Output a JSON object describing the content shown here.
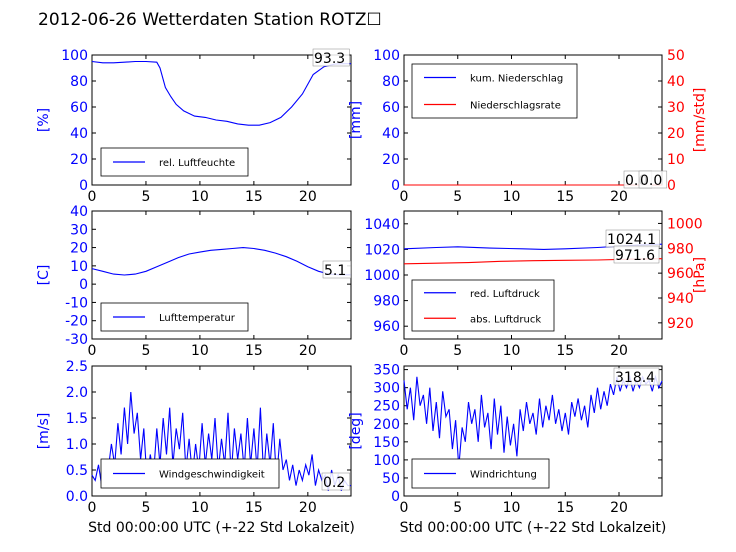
{
  "title": "2012-06-26 Wetterdaten Station ROTZ☐",
  "colors": {
    "blue": "#0000ff",
    "red": "#ff0000",
    "black": "#000000"
  },
  "chart_data": [
    {
      "id": "humidity",
      "type": "line",
      "xlim": [
        0,
        24
      ],
      "ylim": [
        0,
        100
      ],
      "xticks": [
        0,
        5,
        10,
        15,
        20
      ],
      "yticks": [
        0,
        20,
        40,
        60,
        80,
        100
      ],
      "ylabel": "[%]",
      "legend": {
        "position": "lower-left",
        "entries": [
          "rel. Luftfeuchte"
        ]
      },
      "annotations": [
        "93.3"
      ],
      "series": [
        {
          "name": "rel. Luftfeuchte",
          "color": "#0000ff",
          "x": [
            0,
            1,
            2,
            3,
            4,
            5,
            6,
            6.3,
            6.8,
            7.3,
            7.8,
            8.5,
            9.5,
            10.5,
            11.5,
            12.5,
            13.5,
            14.5,
            15.5,
            16.5,
            17.5,
            18.5,
            19.5,
            20.5,
            21.5,
            22.5,
            23.5,
            24
          ],
          "y": [
            95,
            94,
            94,
            94.5,
            95,
            95,
            94.5,
            90,
            75,
            68,
            62,
            57,
            53,
            52,
            50,
            49,
            47,
            46,
            46,
            48,
            52,
            60,
            70,
            85,
            91,
            93,
            93.3,
            93.3
          ]
        }
      ]
    },
    {
      "id": "precipitation",
      "type": "line",
      "xlim": [
        0,
        24
      ],
      "ylim": [
        0,
        100
      ],
      "y2lim": [
        0,
        50
      ],
      "xticks": [
        0,
        5,
        10,
        15,
        20
      ],
      "yticks": [
        0,
        20,
        40,
        60,
        80,
        100
      ],
      "y2ticks": [
        0,
        10,
        20,
        30,
        40,
        50
      ],
      "ylabel": "[mm]",
      "y2label": "[mm/std]",
      "legend": {
        "position": "upper-left",
        "entries": [
          "kum. Niederschlag",
          "Niederschlagsrate"
        ]
      },
      "annotations": [
        "0.0",
        "0.0"
      ],
      "series": [
        {
          "name": "kum. Niederschlag",
          "color": "#0000ff",
          "axis": "left",
          "x": [
            0,
            24
          ],
          "y": [
            0,
            0
          ]
        },
        {
          "name": "Niederschlagsrate",
          "color": "#ff0000",
          "axis": "right",
          "x": [
            0,
            24
          ],
          "y": [
            0,
            0
          ]
        }
      ]
    },
    {
      "id": "temperature",
      "type": "line",
      "xlim": [
        0,
        24
      ],
      "ylim": [
        -30,
        40
      ],
      "xticks": [
        0,
        5,
        10,
        15,
        20
      ],
      "yticks": [
        -30,
        -20,
        -10,
        0,
        10,
        20,
        30,
        40
      ],
      "ylabel": "[C]",
      "legend": {
        "position": "lower-left",
        "entries": [
          "Lufttemperatur"
        ]
      },
      "annotations": [
        "5.1"
      ],
      "series": [
        {
          "name": "Lufttemperatur",
          "color": "#0000ff",
          "x": [
            0,
            1,
            2,
            3,
            4,
            5,
            6,
            7,
            8,
            9,
            10,
            11,
            12,
            13,
            14,
            15,
            16,
            17,
            18,
            19,
            20,
            21,
            22,
            23,
            24
          ],
          "y": [
            8.5,
            7,
            5.5,
            5,
            5.5,
            7,
            9.5,
            12,
            14.5,
            16.5,
            17.5,
            18.5,
            19,
            19.5,
            20,
            19.5,
            18.5,
            17,
            15,
            12.5,
            9.5,
            7,
            5.5,
            5.1,
            5.1
          ]
        }
      ]
    },
    {
      "id": "pressure",
      "type": "line",
      "xlim": [
        0,
        24
      ],
      "ylim": [
        950,
        1050
      ],
      "y2lim": [
        907,
        1010
      ],
      "xticks": [
        0,
        5,
        10,
        15,
        20
      ],
      "yticks": [
        960,
        980,
        1000,
        1020,
        1040
      ],
      "y2ticks": [
        920,
        940,
        960,
        980,
        1000
      ],
      "ylabel": "",
      "y2label": "[hPa]",
      "legend": {
        "position": "lower-left",
        "entries": [
          "red. Luftdruck",
          "abs. Luftdruck"
        ]
      },
      "annotations": [
        "1024.1",
        "971.6"
      ],
      "series": [
        {
          "name": "red. Luftdruck",
          "color": "#0000ff",
          "axis": "left",
          "x": [
            0,
            3,
            5,
            8,
            11,
            13,
            15,
            18,
            20,
            22,
            24
          ],
          "y": [
            1020.5,
            1021.5,
            1022,
            1021,
            1020.5,
            1020,
            1020.5,
            1021.5,
            1022.5,
            1023.5,
            1024.1
          ]
        },
        {
          "name": "abs. Luftdruck",
          "color": "#ff0000",
          "axis": "right",
          "x": [
            0,
            3,
            6,
            9,
            12,
            15,
            18,
            21,
            24
          ],
          "y": [
            967.5,
            968,
            968.5,
            969.5,
            970,
            970.3,
            970.6,
            971.2,
            971.6
          ]
        }
      ]
    },
    {
      "id": "wind-speed",
      "type": "line",
      "xlim": [
        0,
        24
      ],
      "ylim": [
        0,
        2.5
      ],
      "xticks": [
        0,
        5,
        10,
        15,
        20
      ],
      "yticks": [
        0.0,
        0.5,
        1.0,
        1.5,
        2.0,
        2.5
      ],
      "ylabel": "[m/s]",
      "xlabel": "Std 00:00:00 UTC (+-22 Std Lokalzeit)",
      "legend": {
        "position": "lower-left",
        "entries": [
          "Windgeschwindigkeit"
        ]
      },
      "annotations": [
        "0.2"
      ],
      "series": [
        {
          "name": "Windgeschwindigkeit",
          "color": "#0000ff",
          "x": [
            0,
            0.3,
            0.6,
            0.9,
            1.2,
            1.5,
            1.8,
            2.1,
            2.4,
            2.7,
            3.0,
            3.3,
            3.6,
            3.9,
            4.2,
            4.5,
            4.8,
            5.1,
            5.4,
            5.7,
            6.0,
            6.3,
            6.6,
            6.9,
            7.2,
            7.5,
            7.8,
            8.1,
            8.4,
            8.7,
            9.0,
            9.3,
            9.6,
            9.9,
            10.2,
            10.5,
            10.8,
            11.1,
            11.4,
            11.7,
            12.0,
            12.3,
            12.6,
            12.9,
            13.2,
            13.5,
            13.8,
            14.1,
            14.4,
            14.7,
            15.0,
            15.3,
            15.6,
            15.9,
            16.2,
            16.5,
            16.8,
            17.1,
            17.4,
            17.7,
            18.0,
            18.3,
            18.6,
            18.9,
            19.2,
            19.5,
            19.8,
            20.1,
            20.4,
            20.7,
            21.0,
            21.3,
            21.6,
            21.9,
            22.2,
            22.5,
            22.8,
            23.1,
            23.4,
            23.7,
            24.0
          ],
          "y": [
            0.4,
            0.3,
            0.6,
            0.2,
            0.7,
            0.5,
            1.0,
            0.6,
            1.4,
            0.8,
            1.7,
            1.0,
            2.0,
            1.2,
            1.6,
            0.7,
            1.3,
            0.3,
            0.8,
            0.4,
            1.3,
            0.6,
            1.5,
            0.8,
            1.7,
            0.6,
            1.3,
            0.9,
            1.6,
            0.5,
            1.1,
            0.4,
            1.0,
            0.5,
            1.4,
            0.6,
            1.2,
            0.7,
            1.5,
            0.5,
            1.1,
            0.6,
            1.6,
            0.4,
            1.3,
            0.7,
            1.2,
            0.5,
            1.5,
            0.6,
            1.3,
            0.5,
            1.7,
            0.4,
            1.2,
            0.6,
            1.4,
            0.3,
            1.1,
            0.5,
            0.7,
            0.3,
            0.6,
            0.2,
            0.5,
            0.3,
            0.6,
            0.4,
            0.8,
            0.2,
            0.5,
            0.3,
            0.4,
            0.1,
            0.5,
            0.2,
            0.4,
            0.1,
            0.3,
            0.2,
            0.2
          ]
        }
      ]
    },
    {
      "id": "wind-direction",
      "type": "line",
      "xlim": [
        0,
        24
      ],
      "ylim": [
        0,
        360
      ],
      "xticks": [
        0,
        5,
        10,
        15,
        20
      ],
      "yticks": [
        0,
        50,
        100,
        150,
        200,
        250,
        300,
        350
      ],
      "ylabel": "[deg]",
      "xlabel": "Std 00:00:00 UTC (+-22 Std Lokalzeit)",
      "legend": {
        "position": "lower-left",
        "entries": [
          "Windrichtung"
        ]
      },
      "annotations": [
        "318.4"
      ],
      "series": [
        {
          "name": "Windrichtung",
          "color": "#0000ff",
          "x": [
            0,
            0.3,
            0.6,
            0.9,
            1.2,
            1.5,
            1.8,
            2.1,
            2.4,
            2.7,
            3.0,
            3.3,
            3.6,
            3.9,
            4.2,
            4.5,
            4.8,
            5.1,
            5.4,
            5.7,
            6.0,
            6.3,
            6.6,
            6.9,
            7.2,
            7.5,
            7.8,
            8.1,
            8.4,
            8.7,
            9.0,
            9.3,
            9.6,
            9.9,
            10.2,
            10.5,
            10.8,
            11.1,
            11.4,
            11.7,
            12.0,
            12.3,
            12.6,
            12.9,
            13.2,
            13.5,
            13.8,
            14.1,
            14.4,
            14.7,
            15.0,
            15.3,
            15.6,
            15.9,
            16.2,
            16.5,
            16.8,
            17.1,
            17.4,
            17.7,
            18.0,
            18.3,
            18.6,
            18.9,
            19.2,
            19.5,
            19.8,
            20.1,
            20.4,
            20.7,
            21.0,
            21.3,
            21.6,
            21.9,
            22.2,
            22.5,
            22.8,
            23.1,
            23.4,
            23.7,
            24.0
          ],
          "y": [
            320,
            240,
            300,
            210,
            330,
            250,
            280,
            200,
            300,
            180,
            260,
            160,
            290,
            220,
            240,
            130,
            210,
            80,
            190,
            150,
            260,
            200,
            240,
            150,
            280,
            190,
            230,
            130,
            270,
            170,
            250,
            120,
            220,
            140,
            200,
            110,
            240,
            180,
            260,
            200,
            230,
            170,
            270,
            190,
            250,
            210,
            280,
            200,
            240,
            180,
            230,
            170,
            260,
            220,
            270,
            210,
            250,
            190,
            280,
            230,
            300,
            240,
            290,
            250,
            310,
            280,
            330,
            290,
            320,
            300,
            330,
            290,
            320,
            300,
            330,
            310,
            320,
            290,
            330,
            300,
            318.4
          ]
        }
      ]
    }
  ]
}
